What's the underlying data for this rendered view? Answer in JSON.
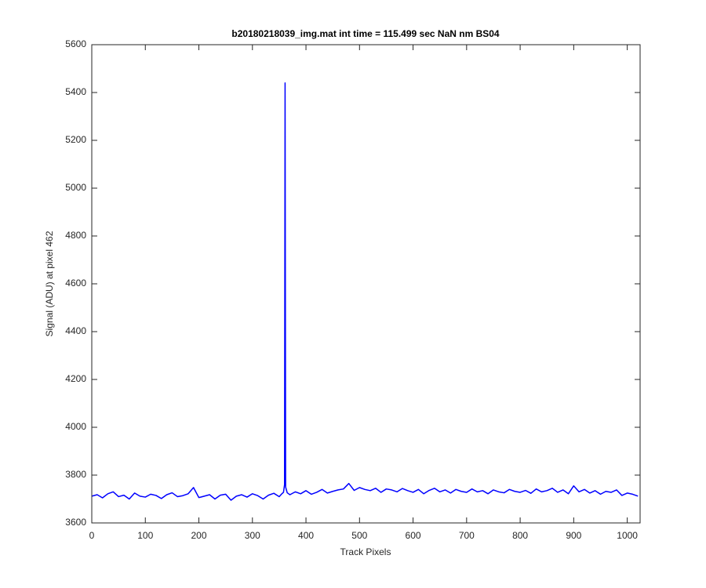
{
  "chart_data": {
    "type": "line",
    "title": "b20180218039_img.mat int time = 115.499 sec  NaN nm BS04",
    "xlabel": "Track Pixels",
    "ylabel": "Signal (ADU) at pixel 462",
    "xlim": [
      0,
      1024
    ],
    "ylim": [
      3600,
      5600
    ],
    "xticks": [
      0,
      100,
      200,
      300,
      400,
      500,
      600,
      700,
      800,
      900,
      1000
    ],
    "yticks": [
      3600,
      3800,
      4000,
      4200,
      4400,
      4600,
      4800,
      5000,
      5200,
      5400,
      5600
    ],
    "grid": false,
    "x": [
      0,
      10,
      20,
      30,
      40,
      50,
      60,
      70,
      80,
      90,
      100,
      110,
      120,
      130,
      140,
      150,
      160,
      170,
      180,
      190,
      200,
      210,
      220,
      230,
      240,
      250,
      260,
      270,
      280,
      290,
      300,
      310,
      320,
      330,
      340,
      350,
      355,
      358,
      360,
      361,
      362,
      365,
      370,
      380,
      390,
      400,
      410,
      420,
      430,
      440,
      450,
      460,
      470,
      480,
      490,
      500,
      510,
      520,
      530,
      540,
      550,
      560,
      570,
      580,
      590,
      600,
      610,
      620,
      630,
      640,
      650,
      660,
      670,
      680,
      690,
      700,
      710,
      720,
      730,
      740,
      750,
      760,
      770,
      780,
      790,
      800,
      810,
      820,
      830,
      840,
      850,
      860,
      870,
      880,
      890,
      900,
      910,
      920,
      930,
      940,
      950,
      960,
      970,
      980,
      990,
      1000,
      1010,
      1020
    ],
    "series": [
      {
        "color": "#0000ff",
        "values": [
          3712,
          3718,
          3705,
          3722,
          3730,
          3710,
          3716,
          3700,
          3725,
          3712,
          3708,
          3720,
          3715,
          3702,
          3718,
          3726,
          3710,
          3714,
          3722,
          3748,
          3706,
          3712,
          3718,
          3700,
          3716,
          3720,
          3695,
          3712,
          3718,
          3708,
          3722,
          3714,
          3700,
          3716,
          3724,
          3710,
          3722,
          3728,
          3760,
          5440,
          3750,
          3726,
          3718,
          3730,
          3722,
          3735,
          3720,
          3728,
          3740,
          3725,
          3732,
          3738,
          3742,
          3765,
          3736,
          3748,
          3740,
          3735,
          3745,
          3728,
          3742,
          3738,
          3730,
          3744,
          3735,
          3728,
          3740,
          3722,
          3736,
          3745,
          3730,
          3738,
          3725,
          3740,
          3732,
          3728,
          3742,
          3730,
          3735,
          3722,
          3738,
          3730,
          3726,
          3740,
          3732,
          3728,
          3736,
          3724,
          3742,
          3730,
          3735,
          3745,
          3728,
          3738,
          3722,
          3755,
          3730,
          3740,
          3725,
          3735,
          3720,
          3732,
          3728,
          3738,
          3715,
          3725,
          3720,
          3712
        ]
      }
    ]
  }
}
